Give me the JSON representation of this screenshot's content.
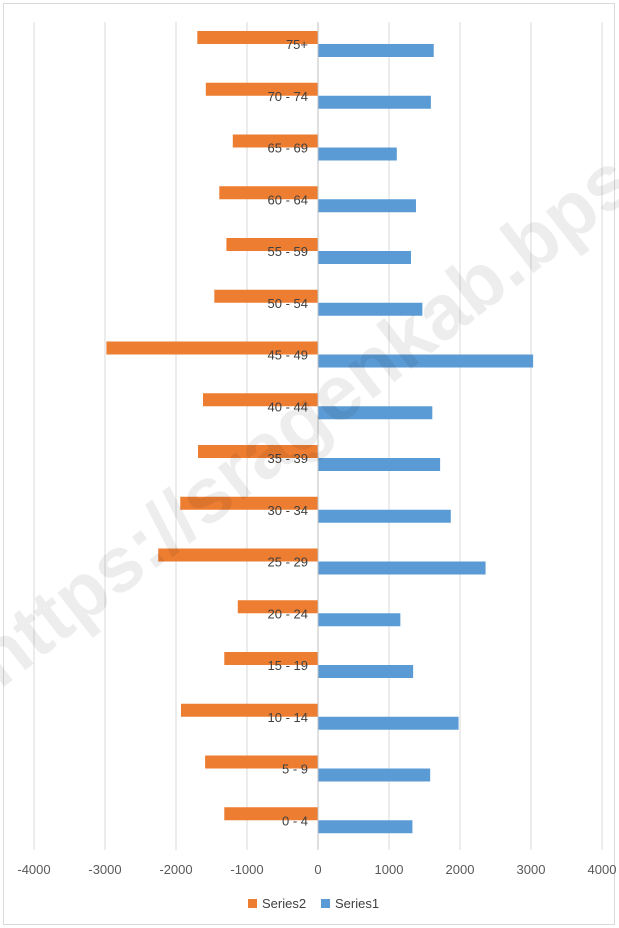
{
  "chart_data": {
    "type": "bar",
    "orientation": "horizontal",
    "categories": [
      "0 - 4",
      "5 - 9",
      "10 - 14",
      "15 - 19",
      "20 - 24",
      "25 - 29",
      "30 - 34",
      "35 - 39",
      "40 - 44",
      "45 - 49",
      "50 - 54",
      "55 - 59",
      "60 - 64",
      "65 - 69",
      "70 - 74",
      "75+"
    ],
    "series": [
      {
        "name": "Series1",
        "color": "#5b9bd5",
        "values": [
          1330,
          1580,
          1980,
          1340,
          1160,
          2360,
          1870,
          1720,
          1610,
          3030,
          1470,
          1310,
          1380,
          1110,
          1590,
          1630
        ]
      },
      {
        "name": "Series2",
        "color": "#ed7d31",
        "values": [
          -1320,
          -1590,
          -1930,
          -1320,
          -1130,
          -2250,
          -1940,
          -1690,
          -1620,
          -2980,
          -1460,
          -1290,
          -1390,
          -1200,
          -1580,
          -1700
        ]
      }
    ],
    "xlim": [
      -4000,
      4000
    ],
    "xticks": [
      -4000,
      -3000,
      -2000,
      -1000,
      0,
      1000,
      2000,
      3000,
      4000
    ],
    "xtick_labels": [
      "-4000",
      "-3000",
      "-2000",
      "-1000",
      "0",
      "1000",
      "2000",
      "3000",
      "4000"
    ],
    "grid": "vertical",
    "legend": {
      "position": "bottom",
      "entries": [
        "Series2",
        "Series1"
      ]
    },
    "title": "",
    "xlabel": "",
    "ylabel": ""
  },
  "watermark": "https://sragenkab.bps.go.id"
}
